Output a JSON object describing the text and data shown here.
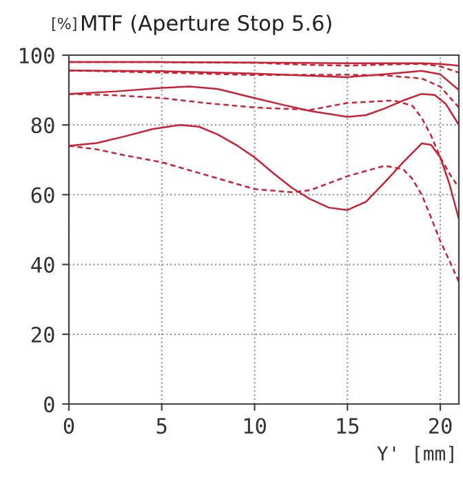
{
  "chart_data": {
    "type": "line",
    "title": "MTF (Aperture Stop 5.6)",
    "ylabel": "[%]",
    "xlabel": "Y' [mm]",
    "xlim": [
      0,
      21
    ],
    "ylim": [
      0,
      100
    ],
    "xticks": [
      0,
      5,
      10,
      15,
      20
    ],
    "yticks": [
      0,
      20,
      40,
      60,
      80,
      100
    ],
    "grid": true,
    "marker": "none",
    "series": [
      {
        "color": "#cc2035",
        "line_style": "solid",
        "x": [
          0,
          5,
          10,
          15,
          19,
          20,
          21
        ],
        "values": [
          98,
          98,
          97.9,
          97.7,
          97.7,
          97.5,
          97
        ]
      },
      {
        "color": "#cc2035",
        "line_style": "dashed",
        "x": [
          0,
          5,
          10,
          13,
          15,
          17,
          19,
          20,
          21
        ],
        "values": [
          98,
          98,
          97.8,
          97.2,
          97,
          97.3,
          97.5,
          96.8,
          95
        ]
      },
      {
        "color": "#cc2035",
        "line_style": "solid",
        "x": [
          0,
          5,
          10,
          15,
          17,
          19,
          20,
          21
        ],
        "values": [
          95.6,
          95.4,
          94.7,
          93.7,
          94.5,
          95.5,
          94.5,
          90
        ]
      },
      {
        "color": "#cc2035",
        "line_style": "dashed",
        "x": [
          0,
          5,
          10,
          15,
          17,
          19,
          20,
          21
        ],
        "values": [
          95.6,
          95,
          94.3,
          94.4,
          94.2,
          93.3,
          91,
          85
        ]
      },
      {
        "color": "#cc2035",
        "line_style": "solid",
        "x": [
          0,
          2.5,
          5,
          6.5,
          8,
          10,
          11.5,
          13,
          15,
          16,
          17,
          18,
          19,
          19.7,
          20.3,
          21
        ],
        "values": [
          88.9,
          89.6,
          90.6,
          91,
          90.3,
          87.7,
          85.8,
          84,
          82.3,
          82.8,
          84.7,
          87,
          88.9,
          88.6,
          86,
          80
        ]
      },
      {
        "color": "#cc2035",
        "line_style": "dashed",
        "x": [
          0,
          2.5,
          5,
          7.5,
          10,
          13,
          15,
          17.5,
          18.5,
          19,
          19.5,
          20,
          20.5,
          21
        ],
        "values": [
          88.9,
          88.5,
          87.7,
          86.2,
          85,
          84.3,
          86.3,
          87,
          85.5,
          82,
          77,
          70.7,
          66,
          62
        ]
      },
      {
        "color": "#cc2035",
        "line_style": "solid",
        "x": [
          0,
          1.5,
          3,
          4.5,
          6,
          7,
          8,
          9,
          10,
          11,
          12,
          13,
          14,
          15,
          16,
          17,
          18,
          19,
          19.5,
          20,
          20.5,
          21
        ],
        "values": [
          74,
          74.8,
          76.7,
          78.8,
          80,
          79.5,
          77.3,
          74.3,
          70.7,
          66.2,
          62,
          58.7,
          56.3,
          55.6,
          58,
          63.5,
          69.3,
          74.7,
          74.3,
          70.7,
          63,
          53
        ]
      },
      {
        "color": "#cc2035",
        "line_style": "dashed",
        "x": [
          0,
          1.5,
          3,
          5,
          8,
          10,
          12,
          13,
          15,
          17,
          18,
          18.5,
          19,
          19.5,
          20,
          20.5,
          21
        ],
        "values": [
          74,
          73,
          71.3,
          69.3,
          64.7,
          61.6,
          60.7,
          61.3,
          65.3,
          68.3,
          67.3,
          64.5,
          60,
          53.5,
          46.7,
          41,
          35
        ]
      }
    ]
  }
}
